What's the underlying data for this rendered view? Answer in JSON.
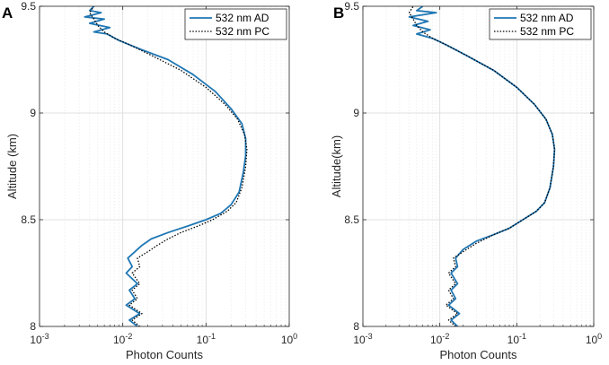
{
  "chart_data": [
    {
      "type": "line",
      "panel": "A",
      "xlabel": "Photon Counts",
      "ylabel": "Altitude (km)",
      "xscale": "log",
      "xlim": [
        0.001,
        1
      ],
      "ylim": [
        8,
        9.5
      ],
      "xticks": [
        0.001,
        0.01,
        0.1,
        1
      ],
      "xtick_labels": [
        {
          "base": "10",
          "exp": "-3"
        },
        {
          "base": "10",
          "exp": "-2"
        },
        {
          "base": "10",
          "exp": "-1"
        },
        {
          "base": "10",
          "exp": "0"
        }
      ],
      "yticks": [
        8,
        8.5,
        9,
        9.5
      ],
      "ytick_labels": [
        "8",
        "8.5",
        "9",
        "9.5"
      ],
      "grid": true,
      "legend": "top-right",
      "series": [
        {
          "name": "532 nm AD",
          "color": "#1f77b4",
          "style": "solid",
          "points": [
            [
              0.015,
              8.0
            ],
            [
              0.012,
              8.03
            ],
            [
              0.016,
              8.06
            ],
            [
              0.011,
              8.1
            ],
            [
              0.014,
              8.13
            ],
            [
              0.012,
              8.17
            ],
            [
              0.015,
              8.2
            ],
            [
              0.011,
              8.25
            ],
            [
              0.013,
              8.28
            ],
            [
              0.0115,
              8.32
            ],
            [
              0.014,
              8.35
            ],
            [
              0.017,
              8.38
            ],
            [
              0.022,
              8.41
            ],
            [
              0.035,
              8.44
            ],
            [
              0.06,
              8.47
            ],
            [
              0.1,
              8.5
            ],
            [
              0.15,
              8.53
            ],
            [
              0.2,
              8.57
            ],
            [
              0.25,
              8.63
            ],
            [
              0.28,
              8.72
            ],
            [
              0.3,
              8.8
            ],
            [
              0.3,
              8.88
            ],
            [
              0.27,
              8.95
            ],
            [
              0.2,
              9.02
            ],
            [
              0.13,
              9.1
            ],
            [
              0.07,
              9.18
            ],
            [
              0.035,
              9.25
            ],
            [
              0.016,
              9.3
            ],
            [
              0.009,
              9.34
            ],
            [
              0.0065,
              9.37
            ],
            [
              0.0045,
              9.38
            ],
            [
              0.007,
              9.4
            ],
            [
              0.004,
              9.42
            ],
            [
              0.006,
              9.44
            ],
            [
              0.0035,
              9.45
            ],
            [
              0.0055,
              9.47
            ],
            [
              0.004,
              9.48
            ],
            [
              0.0045,
              9.5
            ]
          ]
        },
        {
          "name": "532 nm PC",
          "color": "#000000",
          "style": "dotted",
          "points": [
            [
              0.016,
              8.0
            ],
            [
              0.013,
              8.03
            ],
            [
              0.017,
              8.06
            ],
            [
              0.012,
              8.1
            ],
            [
              0.015,
              8.13
            ],
            [
              0.013,
              8.17
            ],
            [
              0.016,
              8.2
            ],
            [
              0.013,
              8.25
            ],
            [
              0.016,
              8.28
            ],
            [
              0.015,
              8.32
            ],
            [
              0.02,
              8.35
            ],
            [
              0.026,
              8.38
            ],
            [
              0.035,
              8.41
            ],
            [
              0.05,
              8.44
            ],
            [
              0.08,
              8.47
            ],
            [
              0.12,
              8.5
            ],
            [
              0.18,
              8.54
            ],
            [
              0.23,
              8.58
            ],
            [
              0.27,
              8.65
            ],
            [
              0.3,
              8.75
            ],
            [
              0.31,
              8.83
            ],
            [
              0.29,
              8.9
            ],
            [
              0.24,
              8.97
            ],
            [
              0.17,
              9.04
            ],
            [
              0.1,
              9.12
            ],
            [
              0.05,
              9.2
            ],
            [
              0.022,
              9.27
            ],
            [
              0.012,
              9.32
            ],
            [
              0.008,
              9.35
            ],
            [
              0.006,
              9.38
            ],
            [
              0.005,
              9.41
            ],
            [
              0.0045,
              9.44
            ],
            [
              0.004,
              9.47
            ],
            [
              0.0045,
              9.5
            ]
          ]
        }
      ]
    },
    {
      "type": "line",
      "panel": "B",
      "xlabel": "Photon Counts",
      "ylabel": "Altitude(km)",
      "xscale": "log",
      "xlim": [
        0.001,
        1
      ],
      "ylim": [
        8,
        9.5
      ],
      "xticks": [
        0.001,
        0.01,
        0.1,
        1
      ],
      "xtick_labels": [
        {
          "base": "10",
          "exp": "-3"
        },
        {
          "base": "10",
          "exp": "-2"
        },
        {
          "base": "10",
          "exp": "-1"
        },
        {
          "base": "10",
          "exp": "0"
        }
      ],
      "yticks": [
        8,
        8.5,
        9,
        9.5
      ],
      "ytick_labels": [
        "8",
        "8.5",
        "9",
        "9.5"
      ],
      "grid": true,
      "legend": "top-right",
      "series": [
        {
          "name": "532 nm AD",
          "color": "#1f77b4",
          "style": "solid",
          "points": [
            [
              0.017,
              8.0
            ],
            [
              0.014,
              8.03
            ],
            [
              0.018,
              8.06
            ],
            [
              0.013,
              8.1
            ],
            [
              0.016,
              8.13
            ],
            [
              0.014,
              8.17
            ],
            [
              0.017,
              8.2
            ],
            [
              0.014,
              8.25
            ],
            [
              0.017,
              8.28
            ],
            [
              0.016,
              8.32
            ],
            [
              0.02,
              8.36
            ],
            [
              0.03,
              8.4
            ],
            [
              0.05,
              8.43
            ],
            [
              0.08,
              8.46
            ],
            [
              0.12,
              8.5
            ],
            [
              0.18,
              8.54
            ],
            [
              0.23,
              8.58
            ],
            [
              0.27,
              8.65
            ],
            [
              0.3,
              8.75
            ],
            [
              0.31,
              8.83
            ],
            [
              0.29,
              8.9
            ],
            [
              0.24,
              8.97
            ],
            [
              0.17,
              9.04
            ],
            [
              0.1,
              9.12
            ],
            [
              0.05,
              9.2
            ],
            [
              0.022,
              9.27
            ],
            [
              0.012,
              9.32
            ],
            [
              0.008,
              9.35
            ],
            [
              0.005,
              9.37
            ],
            [
              0.0075,
              9.39
            ],
            [
              0.0045,
              9.41
            ],
            [
              0.007,
              9.43
            ],
            [
              0.004,
              9.45
            ],
            [
              0.009,
              9.47
            ],
            [
              0.005,
              9.48
            ],
            [
              0.006,
              9.5
            ]
          ]
        },
        {
          "name": "532 nm PC",
          "color": "#000000",
          "style": "dotted",
          "points": [
            [
              0.016,
              8.0
            ],
            [
              0.013,
              8.03
            ],
            [
              0.017,
              8.06
            ],
            [
              0.012,
              8.1
            ],
            [
              0.015,
              8.13
            ],
            [
              0.013,
              8.17
            ],
            [
              0.016,
              8.2
            ],
            [
              0.013,
              8.25
            ],
            [
              0.016,
              8.28
            ],
            [
              0.015,
              8.32
            ],
            [
              0.02,
              8.35
            ],
            [
              0.03,
              8.39
            ],
            [
              0.05,
              8.43
            ],
            [
              0.08,
              8.46
            ],
            [
              0.12,
              8.5
            ],
            [
              0.18,
              8.54
            ],
            [
              0.23,
              8.58
            ],
            [
              0.27,
              8.65
            ],
            [
              0.3,
              8.75
            ],
            [
              0.31,
              8.83
            ],
            [
              0.29,
              8.9
            ],
            [
              0.24,
              8.97
            ],
            [
              0.17,
              9.04
            ],
            [
              0.1,
              9.12
            ],
            [
              0.05,
              9.2
            ],
            [
              0.022,
              9.27
            ],
            [
              0.012,
              9.32
            ],
            [
              0.008,
              9.35
            ],
            [
              0.006,
              9.38
            ],
            [
              0.005,
              9.41
            ],
            [
              0.0045,
              9.44
            ],
            [
              0.004,
              9.47
            ],
            [
              0.0045,
              9.5
            ]
          ]
        }
      ]
    }
  ]
}
